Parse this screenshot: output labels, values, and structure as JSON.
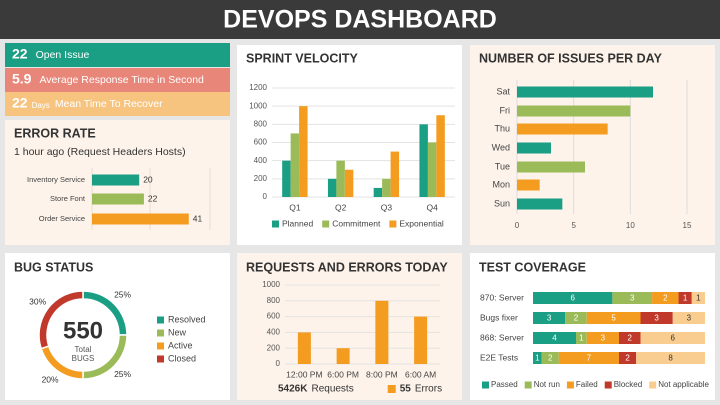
{
  "header": {
    "title": "DEVOPS DASHBOARD"
  },
  "kpis": [
    {
      "value": 22,
      "label": "Open Issue",
      "color": "#1a9e84"
    },
    {
      "value": 5.9,
      "label": "Average Response Time in Second",
      "color": "#e8867a"
    },
    {
      "value": 22,
      "unit": "Days",
      "label": "Mean Time To Recover",
      "color": "#f7c480"
    }
  ],
  "chart_data": [
    {
      "type": "hbar",
      "title": "ERROR RATE",
      "subtitle": "1 hour ago (Request Headers Hosts)",
      "categories": [
        "Inventory Service",
        "Store Font",
        "Order Service"
      ],
      "values": [
        20,
        22,
        41
      ],
      "colors": [
        "#1a9e84",
        "#9bbb59",
        "#f39c1f"
      ],
      "xlim": [
        0,
        50
      ],
      "value_labels_shown": true
    },
    {
      "type": "bar",
      "title": "SPRINT VELOCITY",
      "categories": [
        "Q1",
        "Q2",
        "Q3",
        "Q4"
      ],
      "series": [
        {
          "name": "Planned",
          "color": "#1a9e84",
          "values": [
            400,
            200,
            100,
            800
          ]
        },
        {
          "name": "Commitment",
          "color": "#9bbb59",
          "values": [
            700,
            400,
            200,
            600
          ]
        },
        {
          "name": "Exponential",
          "color": "#f39c1f",
          "values": [
            1000,
            300,
            500,
            900
          ]
        }
      ],
      "ylim": [
        0,
        1200
      ],
      "yticks": [
        0,
        200,
        400,
        600,
        800,
        1000,
        1200
      ],
      "grid": true
    },
    {
      "type": "hbar",
      "title": "NUMBER OF ISSUES PER DAY",
      "categories": [
        "Sat",
        "Fri",
        "Thu",
        "Wed",
        "Tue",
        "Mon",
        "Sun"
      ],
      "values": [
        12,
        10,
        8,
        3,
        6,
        2,
        4
      ],
      "colors": [
        "#1a9e84",
        "#9bbb59",
        "#f39c1f",
        "#1a9e84",
        "#9bbb59",
        "#f39c1f",
        "#1a9e84"
      ],
      "xlim": [
        0,
        15
      ],
      "xticks": [
        0,
        5,
        10,
        15
      ],
      "grid": true
    },
    {
      "type": "donut",
      "title": "BUG STATUS",
      "center_value": 550,
      "center_label": [
        "Total",
        "BUGS"
      ],
      "categories": [
        "Resolved",
        "New",
        "Active",
        "Closed"
      ],
      "values": [
        25,
        25,
        20,
        30
      ],
      "value_labels": [
        "25%",
        "25%",
        "20%",
        "30%"
      ],
      "colors": [
        "#1a9e84",
        "#9bbb59",
        "#f39c1f",
        "#c0392b"
      ]
    },
    {
      "type": "bar",
      "title": "REQUESTS AND ERRORS TODAY",
      "categories": [
        "12:00 PM",
        "6:00 PM",
        "8:00 PM",
        "6:00 AM"
      ],
      "values": [
        400,
        200,
        800,
        600
      ],
      "color": "#f39c1f",
      "ylim": [
        0,
        1000
      ],
      "yticks": [
        0,
        200,
        400,
        600,
        800,
        1000
      ],
      "grid": true,
      "footer": [
        {
          "value": "5426K",
          "label": "Requests"
        },
        {
          "value": 55,
          "label": "Errors",
          "color": "#f39c1f"
        }
      ]
    },
    {
      "type": "stacked100",
      "title": "TEST COVERAGE",
      "categories": [
        "870: Server",
        "Bugs fixer",
        "868: Server",
        "E2E Tests"
      ],
      "series": [
        {
          "name": "Passed",
          "color": "#1a9e84",
          "values": [
            6,
            3,
            4,
            1
          ]
        },
        {
          "name": "Not run",
          "color": "#9bbb59",
          "values": [
            3,
            2,
            1,
            2
          ]
        },
        {
          "name": "Failed",
          "color": "#f39c1f",
          "values": [
            2,
            5,
            3,
            7
          ]
        },
        {
          "name": "Blocked",
          "color": "#c0392b",
          "values": [
            1,
            3,
            2,
            2
          ]
        },
        {
          "name": "Not applicable",
          "color": "#f9cd8f",
          "values": [
            1,
            3,
            6,
            8
          ]
        }
      ]
    }
  ]
}
